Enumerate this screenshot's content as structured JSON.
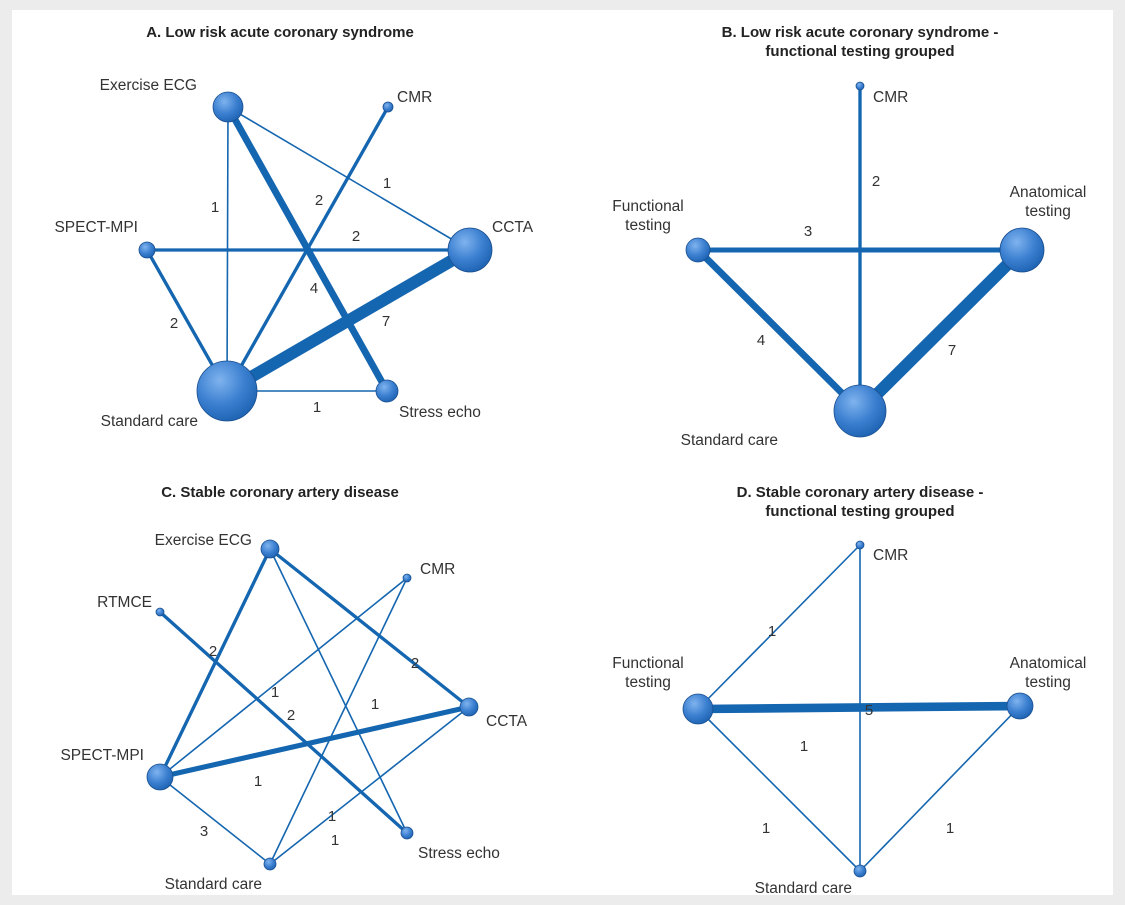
{
  "colors": {
    "background": "#ececec",
    "panel": "#ffffff",
    "edge": "#1566b0",
    "node_light": "#6ea6e6",
    "node_dark": "#1b5faf"
  },
  "panels": [
    {
      "title_lines": [
        "A. Low risk acute coronary syndrome"
      ],
      "nodes": [
        {
          "id": "ecg",
          "label_lines": [
            "Exercise ECG"
          ]
        },
        {
          "id": "cmr",
          "label_lines": [
            "CMR"
          ]
        },
        {
          "id": "spect",
          "label_lines": [
            "SPECT-MPI"
          ]
        },
        {
          "id": "ccta",
          "label_lines": [
            "CCTA"
          ]
        },
        {
          "id": "std",
          "label_lines": [
            "Standard care"
          ]
        },
        {
          "id": "echo",
          "label_lines": [
            "Stress echo"
          ]
        }
      ],
      "edges": [
        {
          "from": "ecg",
          "to": "echo",
          "value": 4
        },
        {
          "from": "ecg",
          "to": "std",
          "value": 1
        },
        {
          "from": "ecg",
          "to": "ccta",
          "value": 1
        },
        {
          "from": "cmr",
          "to": "std",
          "value": 2
        },
        {
          "from": "spect",
          "to": "ccta",
          "value": 2
        },
        {
          "from": "spect",
          "to": "std",
          "value": 2
        },
        {
          "from": "std",
          "to": "ccta",
          "value": 7
        },
        {
          "from": "std",
          "to": "echo",
          "value": 1
        }
      ]
    },
    {
      "title_lines": [
        "B. Low risk acute coronary syndrome -",
        "functional testing grouped"
      ],
      "nodes": [
        {
          "id": "cmr",
          "label_lines": [
            "CMR"
          ]
        },
        {
          "id": "func",
          "label_lines": [
            "Functional",
            "testing"
          ]
        },
        {
          "id": "anat",
          "label_lines": [
            "Anatomical",
            "testing"
          ]
        },
        {
          "id": "std",
          "label_lines": [
            "Standard care"
          ]
        }
      ],
      "edges": [
        {
          "from": "cmr",
          "to": "std",
          "value": 2
        },
        {
          "from": "func",
          "to": "anat",
          "value": 3
        },
        {
          "from": "func",
          "to": "std",
          "value": 4
        },
        {
          "from": "std",
          "to": "anat",
          "value": 7
        }
      ]
    },
    {
      "title_lines": [
        "C. Stable coronary artery disease"
      ],
      "nodes": [
        {
          "id": "ecg",
          "label_lines": [
            "Exercise ECG"
          ]
        },
        {
          "id": "cmr",
          "label_lines": [
            "CMR"
          ]
        },
        {
          "id": "rtmce",
          "label_lines": [
            "RTMCE"
          ]
        },
        {
          "id": "ccta",
          "label_lines": [
            "CCTA"
          ]
        },
        {
          "id": "spect",
          "label_lines": [
            "SPECT-MPI"
          ]
        },
        {
          "id": "std",
          "label_lines": [
            "Standard care"
          ]
        },
        {
          "id": "echo",
          "label_lines": [
            "Stress echo"
          ]
        }
      ],
      "edges": [
        {
          "from": "ecg",
          "to": "spect",
          "value": 2
        },
        {
          "from": "ecg",
          "to": "ccta",
          "value": 2
        },
        {
          "from": "ecg",
          "to": "echo",
          "value": 1
        },
        {
          "from": "rtmce",
          "to": "echo",
          "value": 2
        },
        {
          "from": "cmr",
          "to": "spect",
          "value": 1
        },
        {
          "from": "cmr",
          "to": "std",
          "value": 1
        },
        {
          "from": "spect",
          "to": "ccta",
          "value": 3
        },
        {
          "from": "spect",
          "to": "std",
          "value": 1
        },
        {
          "from": "std",
          "to": "ccta",
          "value": 1
        }
      ]
    },
    {
      "title_lines": [
        "D. Stable coronary artery disease -",
        "functional testing grouped"
      ],
      "nodes": [
        {
          "id": "cmr",
          "label_lines": [
            "CMR"
          ]
        },
        {
          "id": "func",
          "label_lines": [
            "Functional",
            "testing"
          ]
        },
        {
          "id": "anat",
          "label_lines": [
            "Anatomical",
            "testing"
          ]
        },
        {
          "id": "std",
          "label_lines": [
            "Standard care"
          ]
        }
      ],
      "edges": [
        {
          "from": "cmr",
          "to": "func",
          "value": 1
        },
        {
          "from": "func",
          "to": "anat",
          "value": 5
        },
        {
          "from": "cmr",
          "to": "std",
          "value": 1
        },
        {
          "from": "func",
          "to": "std",
          "value": 1
        },
        {
          "from": "anat",
          "to": "std",
          "value": 1
        }
      ]
    }
  ]
}
